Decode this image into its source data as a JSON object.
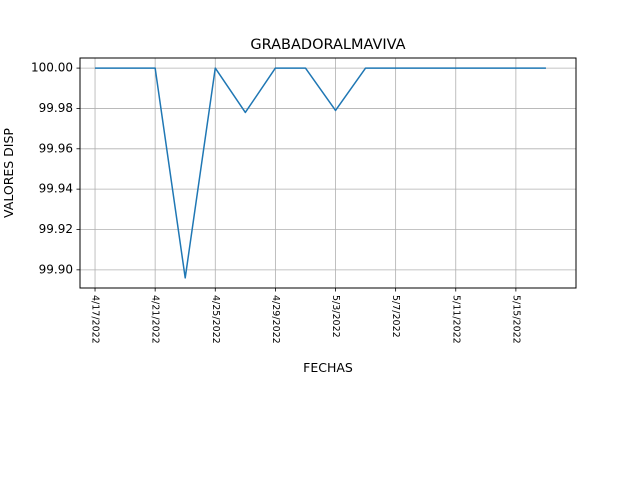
{
  "chart_data": {
    "type": "line",
    "title": "GRABADORALMAVIVA",
    "xlabel": "FECHAS",
    "ylabel": "VALORES DISP",
    "x": [
      "4/17/2022",
      "4/19/2022",
      "4/21/2022",
      "4/23/2022",
      "4/25/2022",
      "4/27/2022",
      "4/29/2022",
      "5/1/2022",
      "5/3/2022",
      "5/5/2022",
      "5/7/2022",
      "5/9/2022",
      "5/11/2022",
      "5/13/2022",
      "5/15/2022",
      "5/17/2022"
    ],
    "series": [
      {
        "values": [
          100.0,
          100.0,
          100.0,
          99.896,
          100.0,
          99.978,
          100.0,
          100.0,
          99.979,
          100.0,
          100.0,
          100.0,
          100.0,
          100.0,
          100.0,
          100.0
        ]
      }
    ],
    "xticks": [
      "4/17/2022",
      "4/21/2022",
      "4/25/2022",
      "4/29/2022",
      "5/3/2022",
      "5/7/2022",
      "5/11/2022",
      "5/15/2022"
    ],
    "yticks": [
      "99.90",
      "99.92",
      "99.94",
      "99.96",
      "99.98",
      "100.00"
    ],
    "xlim": [
      "4/16/2022",
      "5/19/2022"
    ],
    "ylim": [
      99.891,
      100.005
    ],
    "grid": true,
    "colors": {
      "line": "#1f77b4",
      "grid": "#b0b0b0",
      "axes": "#000000"
    }
  }
}
